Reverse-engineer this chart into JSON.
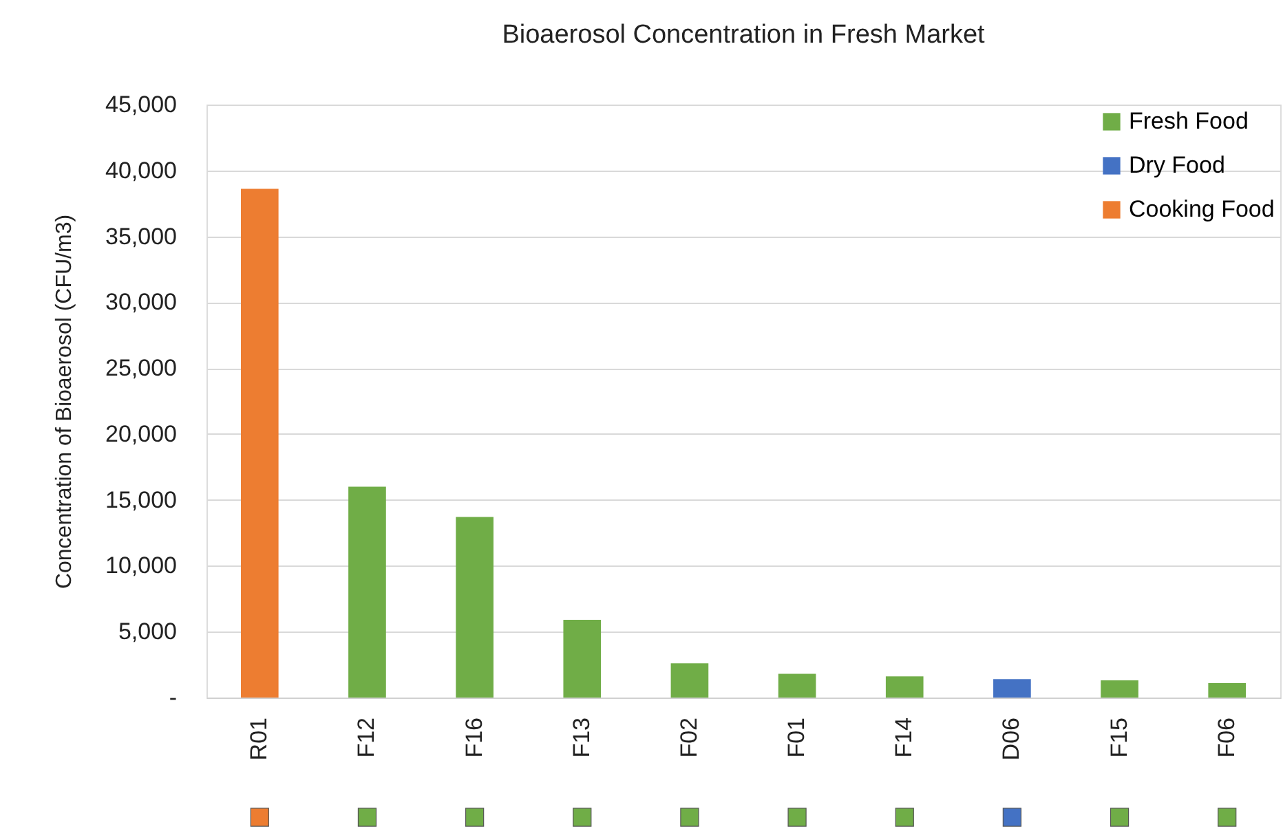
{
  "chart_data": {
    "type": "bar",
    "title": "Bioaerosol Concentration in Fresh Market",
    "ylabel": "Concentration of Bioaerosol (CFU/m3)",
    "categories": [
      "R01",
      "F12",
      "F16",
      "F13",
      "F02",
      "F01",
      "F14",
      "D06",
      "F15",
      "F06"
    ],
    "series": [
      {
        "name": "Fresh Food",
        "color": "#70ad47",
        "values": [
          null,
          16000,
          13700,
          5900,
          2600,
          1800,
          1600,
          null,
          1300,
          1100
        ]
      },
      {
        "name": "Dry Food",
        "color": "#4472c4",
        "values": [
          null,
          null,
          null,
          null,
          null,
          null,
          null,
          1400,
          null,
          null
        ]
      },
      {
        "name": "Cooking Food",
        "color": "#ed7d31",
        "values": [
          38600,
          null,
          null,
          null,
          null,
          null,
          null,
          null,
          null,
          null
        ]
      }
    ],
    "ylim": [
      0,
      45000
    ],
    "yticks": [
      {
        "value": 0,
        "label": "-"
      },
      {
        "value": 5000,
        "label": "5,000"
      },
      {
        "value": 10000,
        "label": "10,000"
      },
      {
        "value": 15000,
        "label": "15,000"
      },
      {
        "value": 20000,
        "label": "20,000"
      },
      {
        "value": 25000,
        "label": "25,000"
      },
      {
        "value": 30000,
        "label": "30,000"
      },
      {
        "value": 35000,
        "label": "35,000"
      },
      {
        "value": 40000,
        "label": "40,000"
      },
      {
        "value": 45000,
        "label": "45,000"
      }
    ],
    "grid": "y",
    "legend": "top right"
  }
}
